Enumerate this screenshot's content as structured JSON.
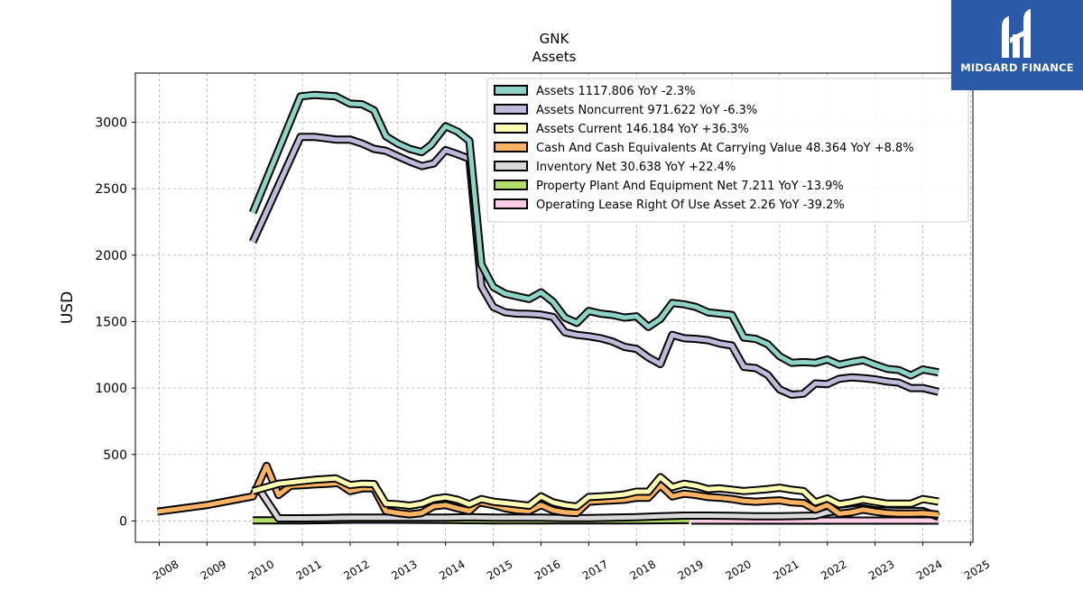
{
  "brand": {
    "name": "MIDGARD FINANCE",
    "bg_color": "#2b5aa8"
  },
  "chart_data": {
    "type": "line",
    "title": "GNK",
    "subtitle": "Assets",
    "xlabel": "",
    "ylabel": "USD",
    "xlim": [
      2007.5,
      2025.05
    ],
    "ylim": [
      -160,
      3370
    ],
    "xticks": [
      2008,
      2009,
      2010,
      2011,
      2012,
      2013,
      2014,
      2015,
      2016,
      2017,
      2018,
      2019,
      2020,
      2021,
      2022,
      2023,
      2024,
      2025
    ],
    "yticks": [
      0,
      500,
      1000,
      1500,
      2000,
      2500,
      3000
    ],
    "grid": true,
    "legend_position": "top-right",
    "series": [
      {
        "name": "Assets  1117.806 YoY -2.3%",
        "color": "#8dd3c7",
        "points": [
          [
            2009.96,
            2320
          ],
          [
            2010.96,
            3195
          ],
          [
            2011.25,
            3205
          ],
          [
            2011.7,
            3195
          ],
          [
            2012.0,
            3140
          ],
          [
            2012.25,
            3135
          ],
          [
            2012.5,
            3090
          ],
          [
            2012.75,
            2895
          ],
          [
            2013.0,
            2840
          ],
          [
            2013.25,
            2800
          ],
          [
            2013.5,
            2775
          ],
          [
            2013.7,
            2830
          ],
          [
            2014.0,
            2970
          ],
          [
            2014.25,
            2930
          ],
          [
            2014.5,
            2860
          ],
          [
            2014.75,
            1930
          ],
          [
            2015.0,
            1760
          ],
          [
            2015.25,
            1710
          ],
          [
            2015.5,
            1690
          ],
          [
            2015.75,
            1670
          ],
          [
            2016.0,
            1720
          ],
          [
            2016.25,
            1650
          ],
          [
            2016.5,
            1530
          ],
          [
            2016.75,
            1490
          ],
          [
            2017.0,
            1580
          ],
          [
            2017.25,
            1560
          ],
          [
            2017.5,
            1550
          ],
          [
            2017.75,
            1530
          ],
          [
            2018.0,
            1540
          ],
          [
            2018.25,
            1460
          ],
          [
            2018.5,
            1520
          ],
          [
            2018.75,
            1640
          ],
          [
            2019.0,
            1630
          ],
          [
            2019.25,
            1610
          ],
          [
            2019.5,
            1570
          ],
          [
            2019.75,
            1560
          ],
          [
            2020.0,
            1550
          ],
          [
            2020.25,
            1380
          ],
          [
            2020.5,
            1370
          ],
          [
            2020.75,
            1330
          ],
          [
            2021.0,
            1240
          ],
          [
            2021.25,
            1190
          ],
          [
            2021.5,
            1195
          ],
          [
            2021.75,
            1190
          ],
          [
            2022.0,
            1215
          ],
          [
            2022.25,
            1175
          ],
          [
            2022.5,
            1195
          ],
          [
            2022.75,
            1210
          ],
          [
            2023.0,
            1175
          ],
          [
            2023.25,
            1145
          ],
          [
            2023.5,
            1135
          ],
          [
            2023.75,
            1095
          ],
          [
            2024.0,
            1140
          ],
          [
            2024.33,
            1118
          ]
        ]
      },
      {
        "name": "Assets Noncurrent  971.622 YoY -6.3%",
        "color": "#bebada",
        "points": [
          [
            2009.96,
            2100
          ],
          [
            2010.96,
            2890
          ],
          [
            2011.25,
            2890
          ],
          [
            2011.7,
            2870
          ],
          [
            2012.0,
            2870
          ],
          [
            2012.25,
            2840
          ],
          [
            2012.5,
            2800
          ],
          [
            2012.75,
            2785
          ],
          [
            2013.0,
            2745
          ],
          [
            2013.25,
            2705
          ],
          [
            2013.5,
            2670
          ],
          [
            2013.75,
            2690
          ],
          [
            2014.0,
            2790
          ],
          [
            2014.25,
            2760
          ],
          [
            2014.5,
            2725
          ],
          [
            2014.75,
            1765
          ],
          [
            2015.0,
            1610
          ],
          [
            2015.25,
            1570
          ],
          [
            2015.5,
            1560
          ],
          [
            2015.75,
            1558
          ],
          [
            2016.0,
            1552
          ],
          [
            2016.25,
            1535
          ],
          [
            2016.5,
            1420
          ],
          [
            2016.75,
            1400
          ],
          [
            2017.0,
            1390
          ],
          [
            2017.25,
            1375
          ],
          [
            2017.5,
            1350
          ],
          [
            2017.75,
            1310
          ],
          [
            2018.0,
            1295
          ],
          [
            2018.25,
            1230
          ],
          [
            2018.5,
            1180
          ],
          [
            2018.75,
            1400
          ],
          [
            2019.0,
            1375
          ],
          [
            2019.25,
            1370
          ],
          [
            2019.5,
            1360
          ],
          [
            2019.75,
            1335
          ],
          [
            2020.0,
            1320
          ],
          [
            2020.25,
            1160
          ],
          [
            2020.5,
            1150
          ],
          [
            2020.75,
            1100
          ],
          [
            2021.0,
            990
          ],
          [
            2021.25,
            950
          ],
          [
            2021.5,
            958
          ],
          [
            2021.75,
            1035
          ],
          [
            2022.0,
            1030
          ],
          [
            2022.25,
            1070
          ],
          [
            2022.5,
            1080
          ],
          [
            2022.75,
            1075
          ],
          [
            2023.0,
            1065
          ],
          [
            2023.25,
            1050
          ],
          [
            2023.5,
            1040
          ],
          [
            2023.75,
            1000
          ],
          [
            2024.0,
            1000
          ],
          [
            2024.33,
            972
          ]
        ]
      },
      {
        "name": "Assets Current  146.184 YoY +36.3%",
        "color": "#ffffb3",
        "points": [
          [
            2009.96,
            225
          ],
          [
            2010.5,
            280
          ],
          [
            2011.0,
            300
          ],
          [
            2011.25,
            310
          ],
          [
            2011.7,
            320
          ],
          [
            2012.0,
            270
          ],
          [
            2012.25,
            280
          ],
          [
            2012.5,
            278
          ],
          [
            2012.75,
            130
          ],
          [
            2013.0,
            125
          ],
          [
            2013.25,
            115
          ],
          [
            2013.5,
            130
          ],
          [
            2013.75,
            165
          ],
          [
            2014.0,
            178
          ],
          [
            2014.25,
            160
          ],
          [
            2014.5,
            125
          ],
          [
            2014.75,
            165
          ],
          [
            2015.0,
            145
          ],
          [
            2015.25,
            135
          ],
          [
            2015.5,
            125
          ],
          [
            2015.75,
            115
          ],
          [
            2016.0,
            185
          ],
          [
            2016.25,
            140
          ],
          [
            2016.5,
            120
          ],
          [
            2016.75,
            108
          ],
          [
            2017.0,
            180
          ],
          [
            2017.25,
            185
          ],
          [
            2017.5,
            190
          ],
          [
            2017.75,
            200
          ],
          [
            2018.0,
            220
          ],
          [
            2018.25,
            220
          ],
          [
            2018.5,
            330
          ],
          [
            2018.75,
            255
          ],
          [
            2019.0,
            280
          ],
          [
            2019.25,
            265
          ],
          [
            2019.5,
            240
          ],
          [
            2019.75,
            245
          ],
          [
            2020.0,
            235
          ],
          [
            2020.25,
            225
          ],
          [
            2020.5,
            232
          ],
          [
            2020.75,
            240
          ],
          [
            2021.0,
            250
          ],
          [
            2021.25,
            235
          ],
          [
            2021.5,
            225
          ],
          [
            2021.75,
            140
          ],
          [
            2022.0,
            170
          ],
          [
            2022.25,
            125
          ],
          [
            2022.5,
            140
          ],
          [
            2022.75,
            160
          ],
          [
            2023.0,
            145
          ],
          [
            2023.25,
            130
          ],
          [
            2023.5,
            130
          ],
          [
            2023.75,
            130
          ],
          [
            2024.0,
            165
          ],
          [
            2024.33,
            146
          ]
        ]
      },
      {
        "name": "Cash And Cash Equivalents At Carrying Value  48.364 YoY +8.8%",
        "color": "#fdb462",
        "points": [
          [
            2007.96,
            70
          ],
          [
            2009.0,
            120
          ],
          [
            2009.96,
            185
          ],
          [
            2010.25,
            415
          ],
          [
            2010.5,
            195
          ],
          [
            2010.75,
            265
          ],
          [
            2011.0,
            270
          ],
          [
            2011.25,
            275
          ],
          [
            2011.5,
            280
          ],
          [
            2011.75,
            285
          ],
          [
            2012.0,
            225
          ],
          [
            2012.25,
            245
          ],
          [
            2012.5,
            245
          ],
          [
            2012.75,
            75
          ],
          [
            2013.0,
            60
          ],
          [
            2013.25,
            50
          ],
          [
            2013.5,
            60
          ],
          [
            2013.75,
            110
          ],
          [
            2014.0,
            120
          ],
          [
            2014.25,
            95
          ],
          [
            2014.5,
            75
          ],
          [
            2014.7,
            140
          ],
          [
            2015.0,
            120
          ],
          [
            2015.25,
            95
          ],
          [
            2015.5,
            80
          ],
          [
            2015.75,
            75
          ],
          [
            2016.0,
            120
          ],
          [
            2016.25,
            80
          ],
          [
            2016.5,
            65
          ],
          [
            2016.75,
            60
          ],
          [
            2017.0,
            145
          ],
          [
            2017.25,
            150
          ],
          [
            2017.5,
            155
          ],
          [
            2017.75,
            160
          ],
          [
            2018.0,
            175
          ],
          [
            2018.25,
            175
          ],
          [
            2018.5,
            270
          ],
          [
            2018.75,
            185
          ],
          [
            2019.0,
            205
          ],
          [
            2019.25,
            195
          ],
          [
            2019.5,
            180
          ],
          [
            2019.75,
            175
          ],
          [
            2020.0,
            165
          ],
          [
            2020.25,
            150
          ],
          [
            2020.5,
            145
          ],
          [
            2020.75,
            150
          ],
          [
            2021.0,
            155
          ],
          [
            2021.25,
            140
          ],
          [
            2021.5,
            135
          ],
          [
            2021.75,
            85
          ],
          [
            2022.0,
            120
          ],
          [
            2022.25,
            55
          ],
          [
            2022.5,
            65
          ],
          [
            2022.75,
            85
          ],
          [
            2023.0,
            70
          ],
          [
            2023.25,
            60
          ],
          [
            2023.5,
            55
          ],
          [
            2023.75,
            55
          ],
          [
            2024.0,
            58
          ],
          [
            2024.33,
            48
          ]
        ]
      },
      {
        "name": "Inventory Net  30.638 YoY +22.4%",
        "color": "#d9d9d9",
        "points": [
          [
            2009.96,
            230
          ],
          [
            2010.1,
            235
          ],
          [
            2010.5,
            20
          ],
          [
            2011.0,
            20
          ],
          [
            2011.5,
            22
          ],
          [
            2012.0,
            25
          ],
          [
            2012.5,
            25
          ],
          [
            2013.0,
            25
          ],
          [
            2013.5,
            25
          ],
          [
            2014.0,
            25
          ],
          [
            2014.5,
            28
          ],
          [
            2015.0,
            25
          ],
          [
            2015.5,
            25
          ],
          [
            2016.0,
            25
          ],
          [
            2016.5,
            22
          ],
          [
            2017.0,
            22
          ],
          [
            2017.5,
            25
          ],
          [
            2018.0,
            28
          ],
          [
            2018.5,
            35
          ],
          [
            2019.0,
            40
          ],
          [
            2019.5,
            40
          ],
          [
            2020.0,
            38
          ],
          [
            2020.5,
            35
          ],
          [
            2021.0,
            35
          ],
          [
            2021.5,
            38
          ],
          [
            2021.75,
            40
          ],
          [
            2022.0,
            65
          ],
          [
            2022.5,
            85
          ],
          [
            2022.75,
            95
          ],
          [
            2023.0,
            80
          ],
          [
            2023.5,
            75
          ],
          [
            2024.0,
            75
          ],
          [
            2024.33,
            31
          ]
        ]
      },
      {
        "name": "Property Plant And Equipment Net  7.211 YoY -13.9%",
        "color": "#b3de69",
        "points": [
          [
            2009.96,
            5
          ],
          [
            2011.0,
            5
          ],
          [
            2012.0,
            10
          ],
          [
            2013.0,
            10
          ],
          [
            2014.0,
            8
          ],
          [
            2015.0,
            5
          ],
          [
            2016.0,
            5
          ],
          [
            2017.0,
            5
          ],
          [
            2018.0,
            5
          ],
          [
            2019.0,
            7
          ],
          [
            2019.1,
            7
          ]
        ]
      },
      {
        "name": "Operating Lease Right Of Use Asset  2.26 YoY -39.2%",
        "color": "#fccde5",
        "points": [
          [
            2019.15,
            3
          ],
          [
            2020.0,
            3
          ],
          [
            2021.0,
            3
          ],
          [
            2022.0,
            3
          ],
          [
            2023.0,
            3
          ],
          [
            2024.0,
            3
          ],
          [
            2024.33,
            3
          ]
        ]
      }
    ]
  }
}
